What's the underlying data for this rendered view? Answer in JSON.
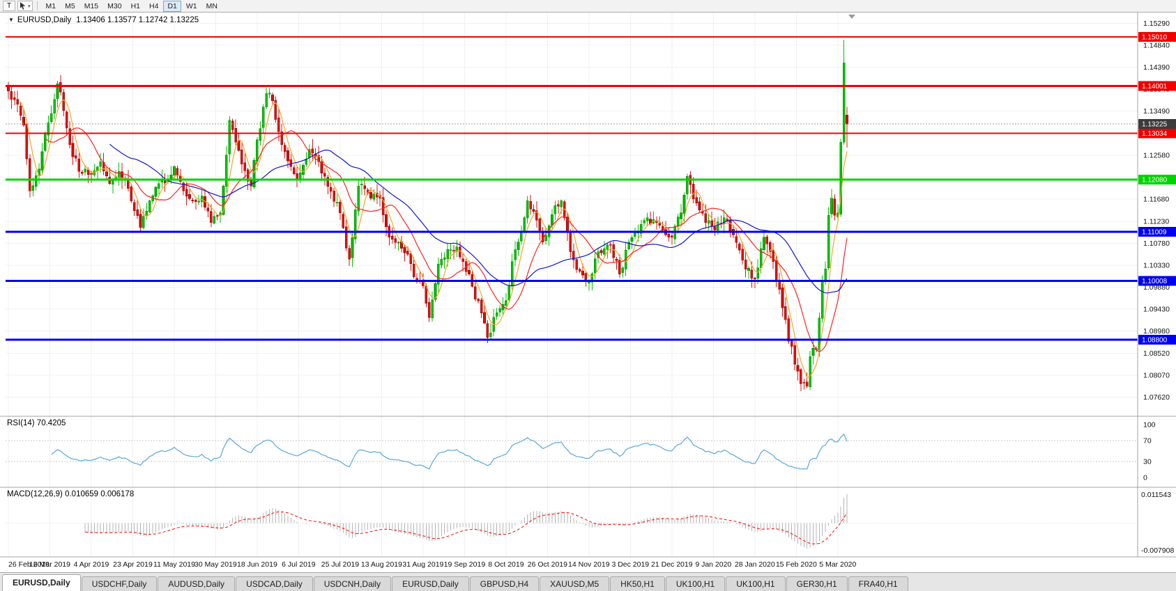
{
  "chart_window": {
    "title": "EURUSD,Daily",
    "ohlc": "1.13406 1.13577 1.12742 1.13225"
  },
  "toolbar": {
    "tool_button": "T",
    "timeframes": [
      "M1",
      "M5",
      "M15",
      "M30",
      "H1",
      "H4",
      "D1",
      "W1",
      "MN"
    ],
    "active_timeframe": "D1"
  },
  "indicators": {
    "rsi_label": "RSI(14) 70.4205",
    "macd_label": "MACD(12,26,9) 0.010659 0.006178"
  },
  "axes": {
    "price_labels": [
      "1.15290",
      "1.14840",
      "1.14390",
      "1.13940",
      "1.13490",
      "1.13040",
      "1.12580",
      "1.12130",
      "1.11680",
      "1.11230",
      "1.10780",
      "1.10330",
      "1.09880",
      "1.09430",
      "1.08980",
      "1.08520",
      "1.08070",
      "1.07620"
    ],
    "rsi_labels": [
      "100",
      "70",
      "30",
      "0"
    ],
    "macd_axis_max": "0.011543",
    "macd_axis_min": "-0.007908",
    "date_labels": [
      "26 Feb 2019",
      "16 Mar 2019",
      "4 Apr 2019",
      "23 Apr 2019",
      "11 May 2019",
      "30 May 2019",
      "18 Jun 2019",
      "6 Jul 2019",
      "25 Jul 2019",
      "13 Aug 2019",
      "31 Aug 2019",
      "19 Sep 2019",
      "8 Oct 2019",
      "26 Oct 2019",
      "14 Nov 2019",
      "3 Dec 2019",
      "21 Dec 2019",
      "9 Jan 2020",
      "28 Jan 2020",
      "15 Feb 2020",
      "5 Mar 2020"
    ]
  },
  "chart_data": {
    "type": "candlestick",
    "symbol": "EURUSD",
    "period": "Daily",
    "num_candles": 274,
    "price_axis": {
      "min": 1.0723,
      "max": 1.1548
    },
    "colors": {
      "up": "#00c200",
      "up_border": "#008f00",
      "down": "#e01010",
      "down_border": "#9c0000",
      "ma_fast": "#f5a623",
      "ma_mid": "#ff2020",
      "ma_slow": "#1414cc",
      "rsi": "#57a7d9",
      "macd_hist": "#b4b4b4",
      "macd_signal": "#ff0000"
    },
    "moving_averages": [
      {
        "period": 5,
        "key": "ma_fast",
        "name": "ma-fast-line"
      },
      {
        "period": 13,
        "key": "ma_mid",
        "name": "ma-mid-line"
      },
      {
        "period": 34,
        "key": "ma_slow",
        "name": "ma-slow-line"
      }
    ],
    "price_anchors": [
      [
        0,
        1.139
      ],
      [
        2,
        1.1372
      ],
      [
        5,
        1.132
      ],
      [
        7,
        1.1185
      ],
      [
        10,
        1.123
      ],
      [
        13,
        1.1325
      ],
      [
        16,
        1.1405
      ],
      [
        18,
        1.135
      ],
      [
        20,
        1.128
      ],
      [
        23,
        1.1225
      ],
      [
        27,
        1.122
      ],
      [
        30,
        1.1245
      ],
      [
        33,
        1.12
      ],
      [
        36,
        1.1225
      ],
      [
        39,
        1.119
      ],
      [
        43,
        1.111
      ],
      [
        46,
        1.1165
      ],
      [
        49,
        1.12
      ],
      [
        52,
        1.121
      ],
      [
        54,
        1.1235
      ],
      [
        57,
        1.1185
      ],
      [
        60,
        1.1165
      ],
      [
        63,
        1.1175
      ],
      [
        66,
        1.112
      ],
      [
        69,
        1.114
      ],
      [
        72,
        1.133
      ],
      [
        76,
        1.124
      ],
      [
        79,
        1.1195
      ],
      [
        81,
        1.129
      ],
      [
        84,
        1.1385
      ],
      [
        86,
        1.137
      ],
      [
        89,
        1.128
      ],
      [
        94,
        1.121
      ],
      [
        98,
        1.127
      ],
      [
        103,
        1.1215
      ],
      [
        108,
        1.114
      ],
      [
        111,
        1.1045
      ],
      [
        114,
        1.1195
      ],
      [
        117,
        1.118
      ],
      [
        121,
        1.117
      ],
      [
        124,
        1.109
      ],
      [
        127,
        1.108
      ],
      [
        130,
        1.1055
      ],
      [
        133,
        1.1
      ],
      [
        135,
        1.099
      ],
      [
        137,
        1.0925
      ],
      [
        140,
        1.1035
      ],
      [
        143,
        1.1065
      ],
      [
        146,
        1.107
      ],
      [
        148,
        1.104
      ],
      [
        151,
        1.099
      ],
      [
        154,
        1.0935
      ],
      [
        156,
        1.0885
      ],
      [
        159,
        1.0935
      ],
      [
        162,
        1.096
      ],
      [
        164,
        1.104
      ],
      [
        167,
        1.11
      ],
      [
        169,
        1.1165
      ],
      [
        172,
        1.1125
      ],
      [
        174,
        1.108
      ],
      [
        178,
        1.1155
      ],
      [
        180,
        1.1165
      ],
      [
        183,
        1.106
      ],
      [
        186,
        1.102
      ],
      [
        189,
        1.1
      ],
      [
        192,
        1.106
      ],
      [
        196,
        1.1075
      ],
      [
        199,
        1.1015
      ],
      [
        202,
        1.108
      ],
      [
        205,
        1.11
      ],
      [
        208,
        1.113
      ],
      [
        211,
        1.112
      ],
      [
        214,
        1.1095
      ],
      [
        216,
        1.109
      ],
      [
        219,
        1.114
      ],
      [
        221,
        1.1215
      ],
      [
        224,
        1.116
      ],
      [
        227,
        1.112
      ],
      [
        230,
        1.1105
      ],
      [
        233,
        1.113
      ],
      [
        236,
        1.1095
      ],
      [
        240,
        1.1025
      ],
      [
        243,
        1.1005
      ],
      [
        246,
        1.109
      ],
      [
        248,
        1.106
      ],
      [
        250,
        1.1
      ],
      [
        252,
        1.0945
      ],
      [
        256,
        1.083
      ],
      [
        258,
        1.079
      ],
      [
        260,
        1.0785
      ],
      [
        261,
        1.0845
      ],
      [
        263,
        1.086
      ],
      [
        265,
        1.1
      ],
      [
        266,
        1.1025
      ],
      [
        267,
        1.1135
      ],
      [
        268,
        1.117
      ],
      [
        269,
        1.1135
      ],
      [
        270,
        1.114
      ],
      [
        271,
        1.1285
      ],
      [
        272,
        1.1448
      ],
      [
        273,
        1.13225
      ]
    ],
    "last_candles": [
      {
        "index": 272,
        "o": 1.1285,
        "h": 1.1495,
        "l": 1.128,
        "c": 1.1448
      },
      {
        "index": 273,
        "o": 1.13406,
        "h": 1.13577,
        "l": 1.12742,
        "c": 1.13225
      }
    ],
    "levels": [
      {
        "label": "1.15010",
        "value": 1.1501,
        "color": "#f20000",
        "thickness": 2
      },
      {
        "label": "1.14001",
        "value": 1.14001,
        "color": "#f20000",
        "thickness": 3
      },
      {
        "label": "1.13034",
        "value": 1.13034,
        "color": "#f20000",
        "thickness": 2
      },
      {
        "label": "1.12080",
        "value": 1.1208,
        "color": "#00d400",
        "thickness": 3
      },
      {
        "label": "1.11009",
        "value": 1.11009,
        "color": "#0000f2",
        "thickness": 3
      },
      {
        "label": "1.10008",
        "value": 1.10008,
        "color": "#0000f2",
        "thickness": 3
      },
      {
        "label": "1.08800",
        "value": 1.088,
        "color": "#0000f2",
        "thickness": 3
      }
    ],
    "current_price": {
      "label": "1.13225",
      "value": 1.13225,
      "tag_color": "#3b3b3b"
    },
    "rsi": {
      "period": 14,
      "last_value": 70.4205,
      "dotted_levels": [
        30,
        70
      ]
    },
    "macd": {
      "fast": 12,
      "slow": 26,
      "signal": 9,
      "main_value": 0.010659,
      "signal_value": 0.006178
    }
  },
  "tabs": [
    "EURUSD,Daily",
    "USDCHF,Daily",
    "AUDUSD,Daily",
    "USDCAD,Daily",
    "USDCNH,Daily",
    "EURUSD,Daily",
    "GBPUSD,H4",
    "XAUUSD,M5",
    "HK50,H1",
    "UK100,H1",
    "UK100,H1",
    "GER30,H1",
    "FRA40,H1"
  ],
  "active_tab_index": 0
}
